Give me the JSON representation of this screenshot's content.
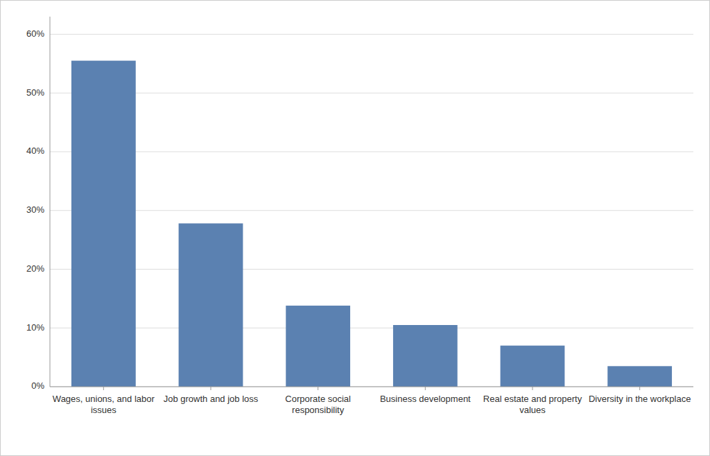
{
  "chart_data": {
    "type": "bar",
    "categories": [
      "Wages, unions, and labor\nissues",
      "Job growth and job loss",
      "Corporate social\nresponsibility",
      "Business development",
      "Real estate and property\nvalues",
      "Diversity in the workplace"
    ],
    "values": [
      0.555,
      0.278,
      0.138,
      0.105,
      0.07,
      0.035
    ],
    "color": "#5b81b1",
    "ylim": [
      0,
      0.63
    ],
    "yticks": [
      {
        "value": 0.0,
        "label": "0%"
      },
      {
        "value": 0.1,
        "label": "10%"
      },
      {
        "value": 0.2,
        "label": "20%"
      },
      {
        "value": 0.3,
        "label": "30%"
      },
      {
        "value": 0.4,
        "label": "40%"
      },
      {
        "value": 0.5,
        "label": "50%"
      },
      {
        "value": 0.6,
        "label": "60%"
      }
    ],
    "grid": true
  }
}
